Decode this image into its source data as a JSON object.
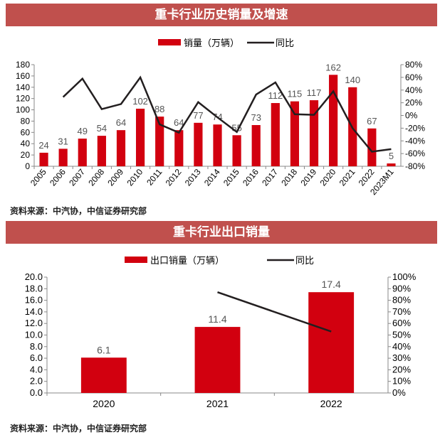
{
  "charts_header": {
    "title1": "重卡行业历史销量及增速",
    "title2": "重卡行业出口销量"
  },
  "source1": "资料来源：中汽协，中信证券研究部",
  "source2": "资料来源：中汽协，中信证券研究部",
  "colors": {
    "bar": "#d2000f",
    "line": "#231f20",
    "header": "#c0504d"
  },
  "chart_data": [
    {
      "type": "bar+line",
      "title": "重卡行业历史销量及增速",
      "categories": [
        "2005",
        "2006",
        "2007",
        "2008",
        "2009",
        "2010",
        "2011",
        "2012",
        "2013",
        "2014",
        "2015",
        "2016",
        "2017",
        "2018",
        "2019",
        "2020",
        "2021",
        "2022",
        "2023M1"
      ],
      "series": [
        {
          "name": "销量（万辆）",
          "type": "bar",
          "axis": "left",
          "values": [
            24,
            31,
            49,
            54,
            64,
            102,
            88,
            64,
            77,
            74,
            55,
            73,
            112,
            115,
            117,
            162,
            140,
            67,
            5
          ]
        },
        {
          "name": "同比",
          "type": "line",
          "axis": "right",
          "values": [
            null,
            29,
            58,
            10,
            18,
            60,
            -14,
            -27,
            21,
            -3,
            -26,
            33,
            52,
            2,
            1,
            38,
            -20,
            -57,
            -53
          ]
        }
      ],
      "ylim_left": [
        0,
        180
      ],
      "yticks_left": [
        "0",
        "20",
        "40",
        "60",
        "80",
        "100",
        "120",
        "140",
        "160",
        "180"
      ],
      "ylim_right": [
        -80,
        80
      ],
      "yticks_right": [
        "-80%",
        "-60%",
        "-40%",
        "-20%",
        "0%",
        "20%",
        "40%",
        "60%",
        "80%"
      ],
      "legend": "top"
    },
    {
      "type": "bar+line",
      "title": "重卡行业出口销量",
      "categories": [
        "2020",
        "2021",
        "2022"
      ],
      "series": [
        {
          "name": "出口销量（万辆）",
          "type": "bar",
          "axis": "left",
          "values": [
            6.1,
            11.4,
            17.4
          ]
        },
        {
          "name": "同比",
          "type": "line",
          "axis": "right",
          "values": [
            null,
            87,
            53
          ]
        }
      ],
      "ylim_left": [
        0,
        20
      ],
      "yticks_left": [
        "0.0",
        "2.0",
        "4.0",
        "6.0",
        "8.0",
        "10.0",
        "12.0",
        "14.0",
        "16.0",
        "18.0",
        "20.0"
      ],
      "ylim_right": [
        0,
        100
      ],
      "yticks_right": [
        "0%",
        "10%",
        "20%",
        "30%",
        "40%",
        "50%",
        "60%",
        "70%",
        "80%",
        "90%",
        "100%"
      ],
      "legend": "top"
    }
  ]
}
